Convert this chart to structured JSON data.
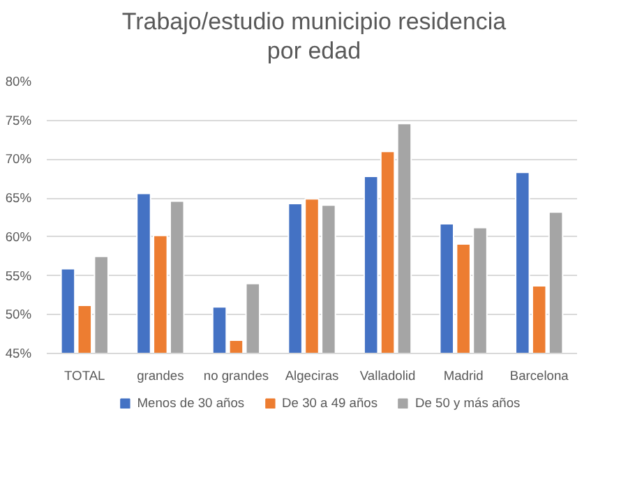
{
  "chart_data": {
    "type": "bar",
    "title": "Trabajo/estudio municipio residencia\npor edad",
    "categories": [
      "TOTAL",
      "grandes",
      "no grandes",
      "Algeciras",
      "Valladolid",
      "Madrid",
      "Barcelona"
    ],
    "series": [
      {
        "name": "Menos de 30 años",
        "color": "#4472c4",
        "values": [
          55.9,
          65.6,
          51.0,
          64.3,
          67.8,
          61.7,
          68.3
        ]
      },
      {
        "name": "De 30 a 49 años",
        "color": "#ed7d31",
        "values": [
          51.2,
          60.2,
          46.7,
          64.9,
          71.0,
          59.1,
          53.7
        ]
      },
      {
        "name": "De 50 y más años",
        "color": "#a5a5a5",
        "values": [
          57.5,
          64.6,
          54.0,
          64.1,
          74.6,
          61.2,
          63.2
        ]
      }
    ],
    "ylim": [
      45,
      80
    ],
    "yticks": [
      {
        "value": 45,
        "label": "45%"
      },
      {
        "value": 50,
        "label": "50%"
      },
      {
        "value": 55,
        "label": "55%"
      },
      {
        "value": 60,
        "label": "60%"
      },
      {
        "value": 65,
        "label": "65%"
      },
      {
        "value": 70,
        "label": "70%"
      },
      {
        "value": 75,
        "label": "75%"
      },
      {
        "value": 80,
        "label": "80%"
      }
    ],
    "grid": "y",
    "legend": "bottom"
  }
}
